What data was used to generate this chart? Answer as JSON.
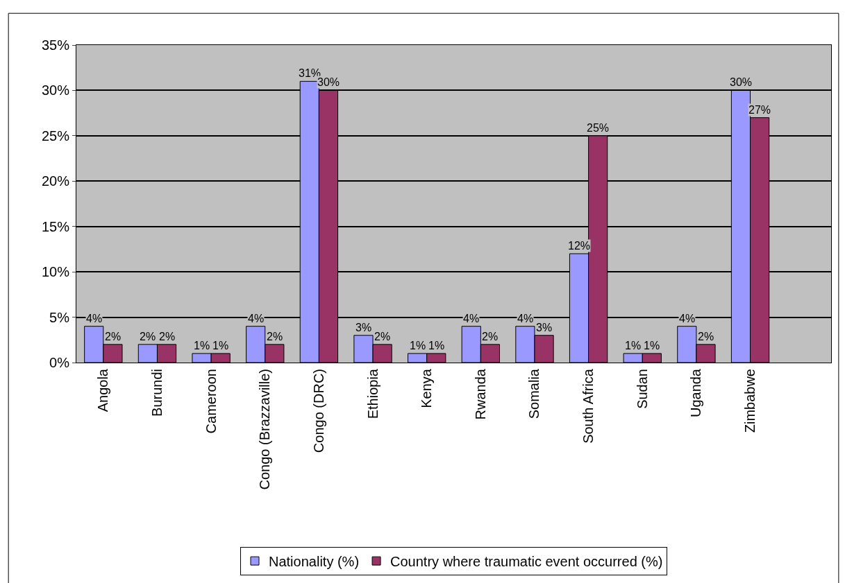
{
  "chart_data": {
    "type": "bar",
    "categories": [
      "Angola",
      "Burundi",
      "Cameroon",
      "Congo (Brazzaville)",
      "Congo (DRC)",
      "Ethiopia",
      "Kenya",
      "Rwanda",
      "Somalia",
      "South Africa",
      "Sudan",
      "Uganda",
      "Zimbabwe",
      null
    ],
    "series": [
      {
        "name": "Nationality (%)",
        "color": "#9999ff",
        "values": [
          4,
          2,
          1,
          4,
          31,
          3,
          1,
          4,
          4,
          12,
          1,
          4,
          30,
          null
        ],
        "value_labels": [
          "4%",
          "2%",
          "1%",
          "4%",
          "31%",
          "3%",
          "1%",
          "4%",
          "4%",
          "12%",
          "1%",
          "4%",
          "30%",
          null
        ]
      },
      {
        "name": "Country where traumatic event occurred (%)",
        "color": "#993366",
        "values": [
          2,
          2,
          1,
          2,
          30,
          2,
          1,
          2,
          3,
          25,
          1,
          2,
          27,
          null
        ],
        "value_labels": [
          "2%",
          "2%",
          "1%",
          "2%",
          "30%",
          "2%",
          "1%",
          "2%",
          "3%",
          "25%",
          "1%",
          "2%",
          "27%",
          null
        ]
      }
    ],
    "ylim": [
      0,
      35
    ],
    "yticks": [
      {
        "value": 0,
        "label": "0%"
      },
      {
        "value": 5,
        "label": "5%"
      },
      {
        "value": 10,
        "label": "10%"
      },
      {
        "value": 15,
        "label": "15%"
      },
      {
        "value": 20,
        "label": "20%"
      },
      {
        "value": 25,
        "label": "25%"
      },
      {
        "value": 30,
        "label": "30%"
      },
      {
        "value": 35,
        "label": "35%"
      }
    ],
    "grid": "y",
    "legend": "bottom"
  }
}
